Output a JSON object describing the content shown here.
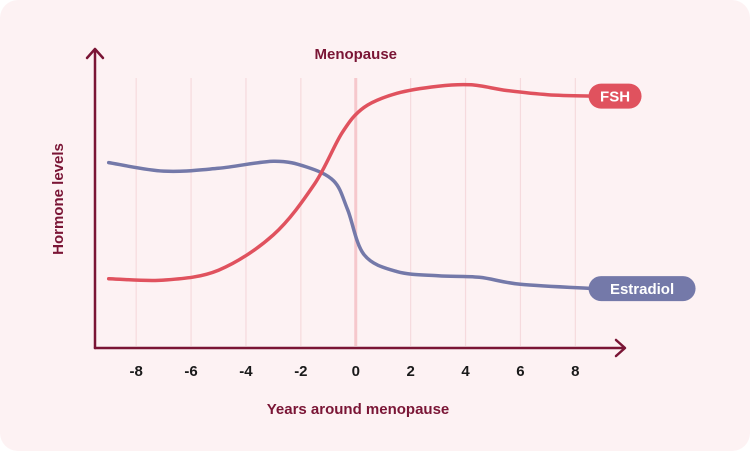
{
  "chart_data": {
    "type": "line",
    "title": "",
    "xlabel": "Years around menopause",
    "ylabel": "Hormone levels",
    "marker_label": "Menopause",
    "marker_x": 0,
    "xlim": [
      -9.5,
      9.7
    ],
    "ylim": [
      0,
      100
    ],
    "x_ticks": [
      -8,
      -6,
      -4,
      -2,
      0,
      2,
      4,
      6,
      8
    ],
    "grid": true,
    "series": [
      {
        "name": "FSH",
        "color": "#e0525e",
        "points": [
          [
            -9,
            24.5
          ],
          [
            -7,
            24
          ],
          [
            -5,
            27.5
          ],
          [
            -3,
            40
          ],
          [
            -1.5,
            58
          ],
          [
            -0.5,
            76
          ],
          [
            0.3,
            85
          ],
          [
            1.5,
            90
          ],
          [
            3,
            92.5
          ],
          [
            4.2,
            93
          ],
          [
            5.5,
            91
          ],
          [
            7,
            89.5
          ],
          [
            8.7,
            89
          ]
        ]
      },
      {
        "name": "Estradiol",
        "color": "#7479a9",
        "points": [
          [
            -9,
            65.5
          ],
          [
            -7,
            62.5
          ],
          [
            -5,
            63.5
          ],
          [
            -3,
            66
          ],
          [
            -1.8,
            64
          ],
          [
            -0.8,
            59
          ],
          [
            -0.3,
            49
          ],
          [
            0.3,
            33
          ],
          [
            1.5,
            27
          ],
          [
            3,
            25.5
          ],
          [
            4.5,
            25
          ],
          [
            6,
            22.5
          ],
          [
            8.7,
            21
          ]
        ]
      }
    ],
    "colors": {
      "axis": "#7a1535",
      "marker": "#f6c8cc",
      "grid": "#f6dadd",
      "fsh": "#e0525e",
      "estradiol": "#7479a9"
    }
  }
}
